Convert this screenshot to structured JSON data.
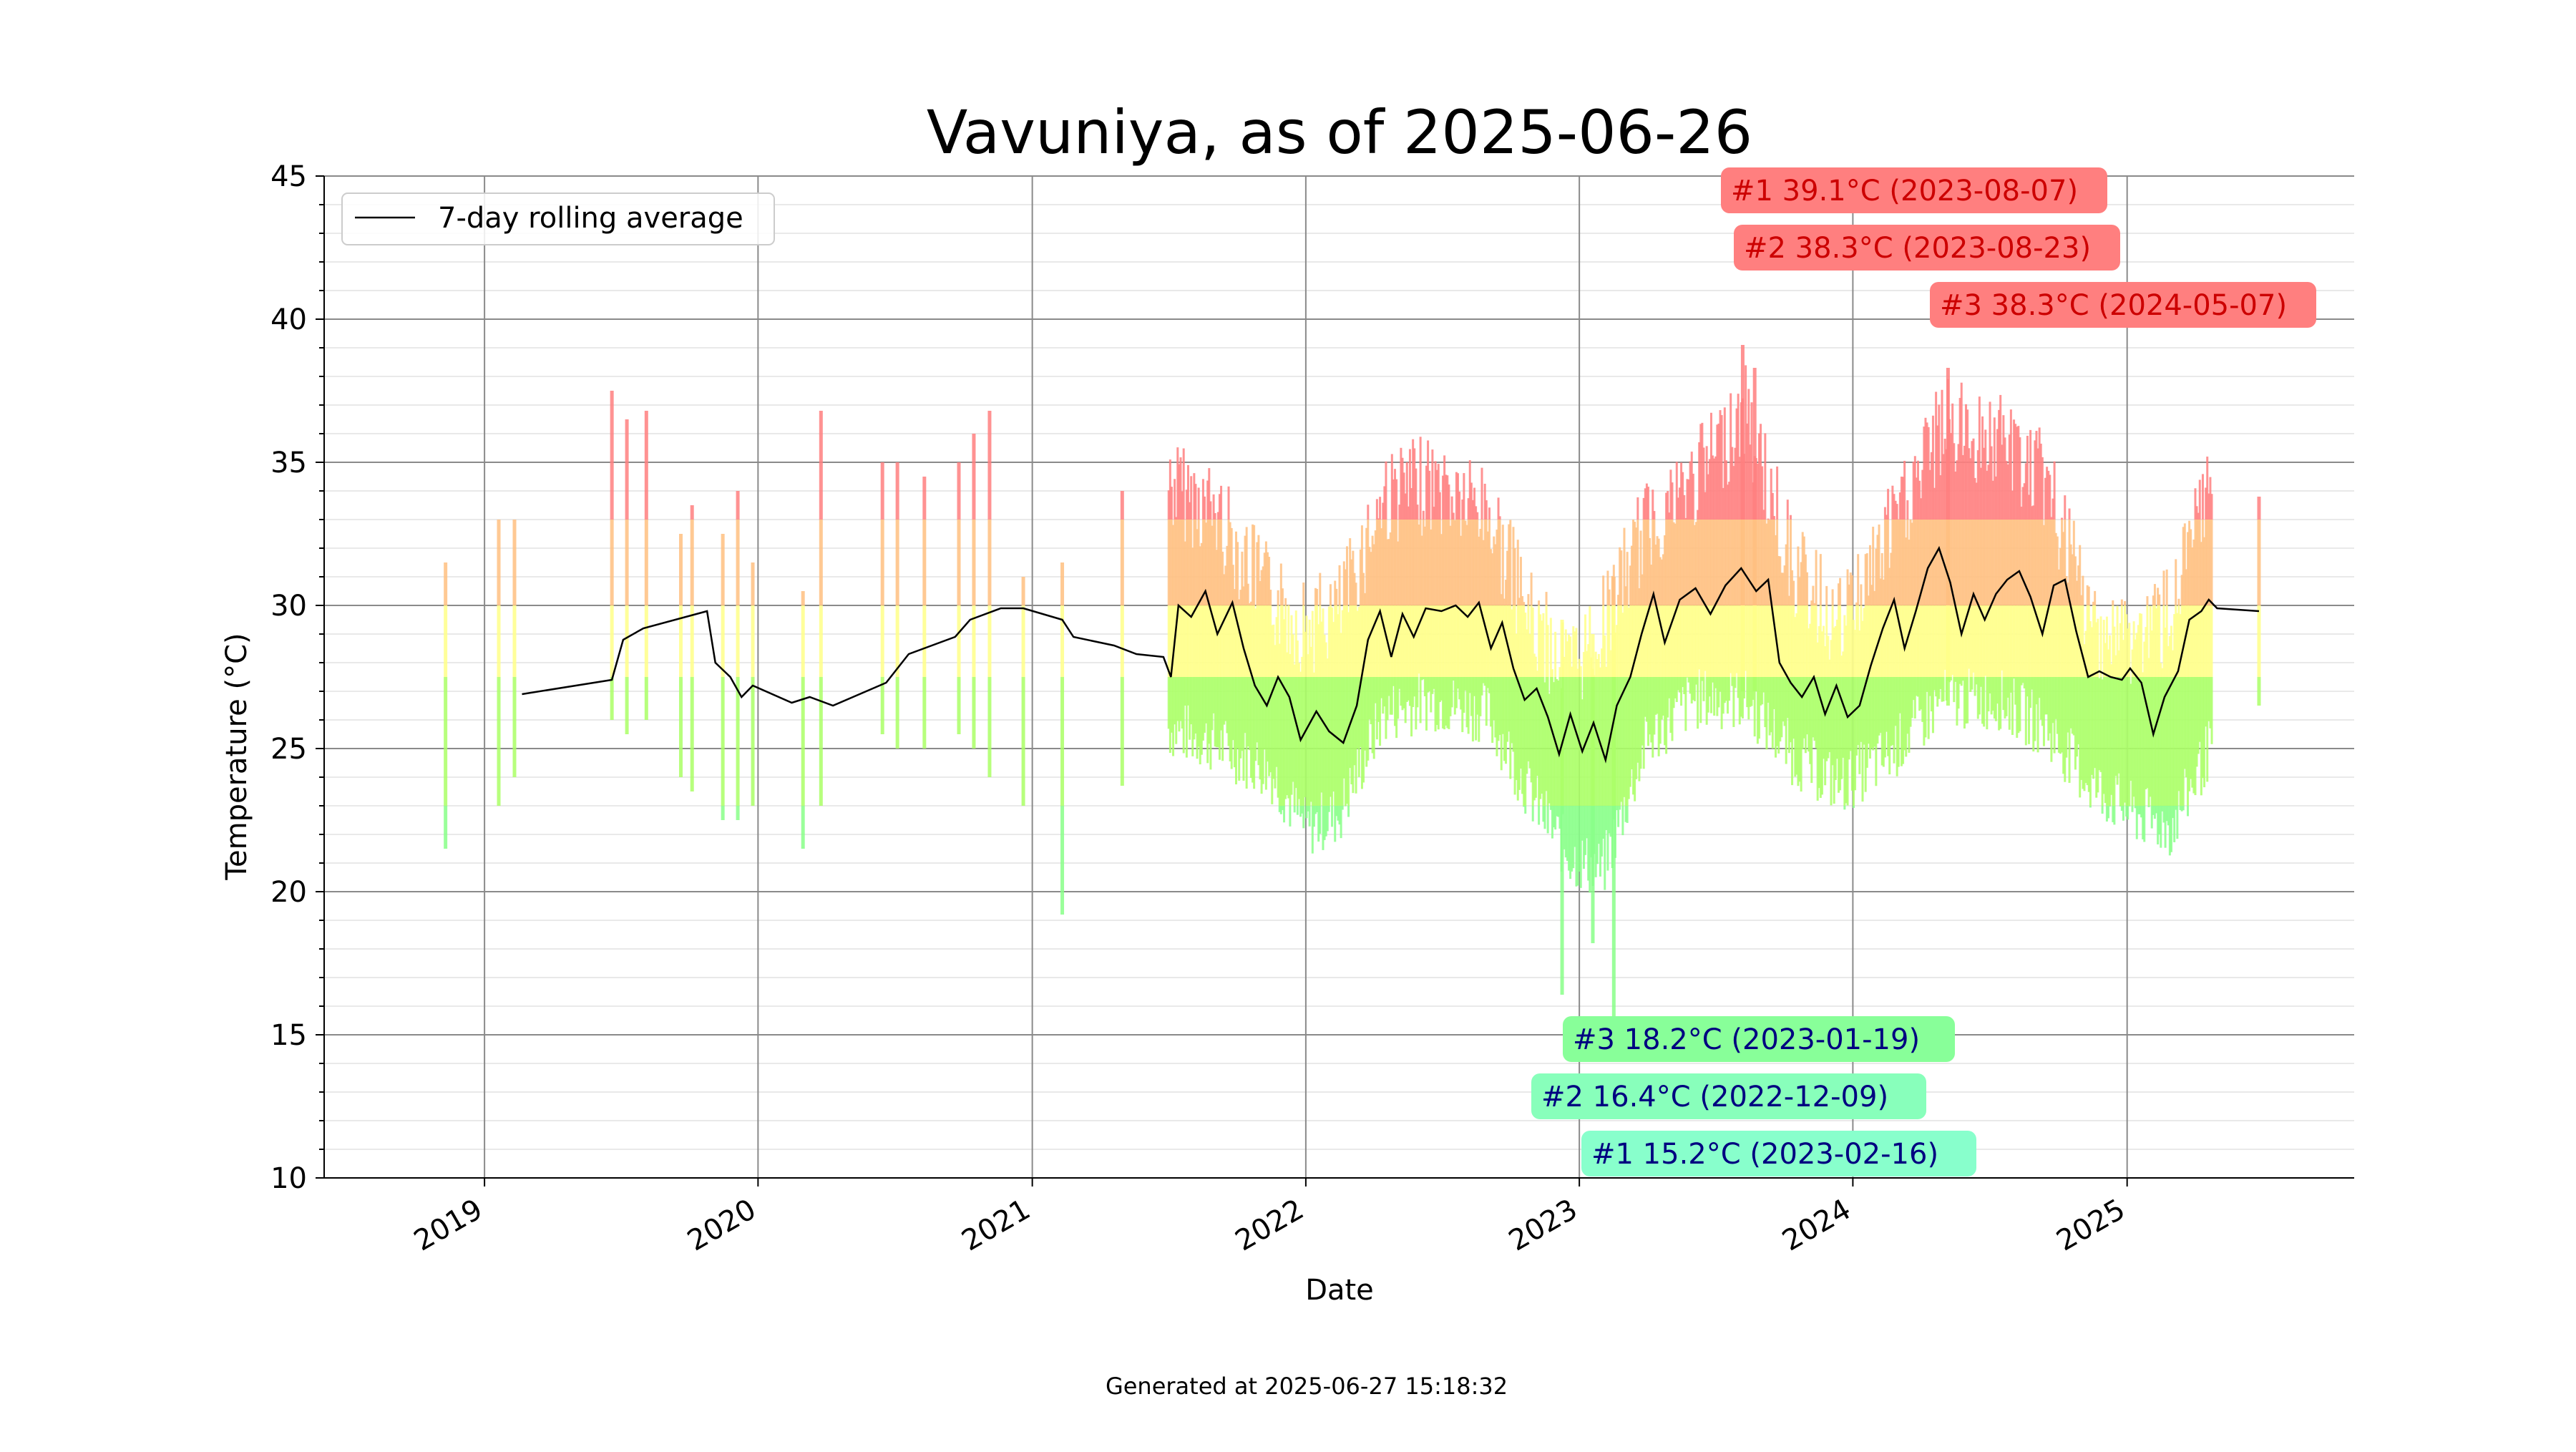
{
  "chart_data": {
    "type": "bar",
    "title": "Vavuniya, as of 2025-06-26",
    "xlabel": "Date",
    "ylabel": "Temperature (°C)",
    "footer": "Generated at 2025-06-27 15:18:32",
    "ylim": [
      10,
      45
    ],
    "xlim": [
      "2018-06-01",
      "2025-10-31"
    ],
    "y_ticks": [
      10,
      15,
      20,
      25,
      30,
      35,
      40,
      45
    ],
    "x_ticks": [
      {
        "date": "2019-01-01",
        "label": "2019"
      },
      {
        "date": "2020-01-01",
        "label": "2020"
      },
      {
        "date": "2021-01-01",
        "label": "2021"
      },
      {
        "date": "2022-01-01",
        "label": "2022"
      },
      {
        "date": "2023-01-01",
        "label": "2023"
      },
      {
        "date": "2024-01-01",
        "label": "2024"
      },
      {
        "date": "2025-01-01",
        "label": "2025"
      }
    ],
    "grid": "on",
    "legend": {
      "placement": "top-left",
      "entries": [
        "7-day rolling average"
      ]
    },
    "colors": {
      "hot": "#ff7f7f",
      "warm": "#ffc080",
      "mild": "#ffff88",
      "cool": "#aaff66",
      "cold": "#88ff88",
      "avg_line": "#000000"
    },
    "daily_ranges": {
      "description_fields": [
        "date",
        "min",
        "max"
      ],
      "segments": [
        {
          "date": "2018-11-10",
          "min": 21.5,
          "max": 31.5
        },
        {
          "date": "2019-01-20",
          "min": 23.0,
          "max": 33.0
        },
        {
          "date": "2019-02-10",
          "min": 24.0,
          "max": 33.0
        },
        {
          "date": "2019-06-20",
          "min": 26.0,
          "max": 37.5
        },
        {
          "date": "2019-07-10",
          "min": 25.5,
          "max": 36.5
        },
        {
          "date": "2019-08-05",
          "min": 26.0,
          "max": 36.8
        },
        {
          "date": "2019-09-20",
          "min": 24.0,
          "max": 32.5
        },
        {
          "date": "2019-10-05",
          "min": 23.5,
          "max": 33.5
        },
        {
          "date": "2019-11-15",
          "min": 22.5,
          "max": 32.5
        },
        {
          "date": "2019-12-05",
          "min": 22.5,
          "max": 34.0
        },
        {
          "date": "2019-12-25",
          "min": 23.0,
          "max": 31.5
        },
        {
          "date": "2020-03-01",
          "min": 21.5,
          "max": 30.5
        },
        {
          "date": "2020-03-25",
          "min": 23.0,
          "max": 36.8
        },
        {
          "date": "2020-06-15",
          "min": 25.5,
          "max": 35.0
        },
        {
          "date": "2020-07-05",
          "min": 25.0,
          "max": 35.0
        },
        {
          "date": "2020-08-10",
          "min": 25.0,
          "max": 34.5
        },
        {
          "date": "2020-09-25",
          "min": 25.5,
          "max": 35.0
        },
        {
          "date": "2020-10-15",
          "min": 25.0,
          "max": 36.0
        },
        {
          "date": "2020-11-05",
          "min": 24.0,
          "max": 36.8
        },
        {
          "date": "2020-12-20",
          "min": 23.0,
          "max": 31.0
        },
        {
          "date": "2021-02-10",
          "min": 19.2,
          "max": 31.5
        },
        {
          "date": "2021-05-01",
          "min": 23.7,
          "max": 34.0
        },
        {
          "date": "2023-08-07",
          "min": 27.0,
          "max": 39.1
        },
        {
          "date": "2023-08-23",
          "min": 27.0,
          "max": 38.3
        },
        {
          "date": "2024-05-07",
          "min": 26.5,
          "max": 38.3
        },
        {
          "date": "2023-01-19",
          "min": 18.2,
          "max": 29.0
        },
        {
          "date": "2022-12-09",
          "min": 16.4,
          "max": 29.5
        },
        {
          "date": "2023-02-16",
          "min": 15.2,
          "max": 31.0
        },
        {
          "date": "2025-06-26",
          "min": 26.5,
          "max": 33.8
        }
      ],
      "dense_periods": [
        {
          "start": "2021-06-20",
          "end": "2025-04-30"
        }
      ]
    },
    "seasonal_envelope": [
      {
        "date": "2021-07-01",
        "min": 25.5,
        "max": 36.0
      },
      {
        "date": "2021-09-01",
        "min": 25.0,
        "max": 35.0
      },
      {
        "date": "2021-11-15",
        "min": 24.0,
        "max": 32.0
      },
      {
        "date": "2022-01-01",
        "min": 22.0,
        "max": 31.0
      },
      {
        "date": "2022-02-15",
        "min": 22.5,
        "max": 31.5
      },
      {
        "date": "2022-04-15",
        "min": 26.0,
        "max": 35.5
      },
      {
        "date": "2022-06-15",
        "min": 26.5,
        "max": 36.0
      },
      {
        "date": "2022-09-01",
        "min": 26.0,
        "max": 35.0
      },
      {
        "date": "2022-11-01",
        "min": 23.0,
        "max": 31.0
      },
      {
        "date": "2022-12-20",
        "min": 21.0,
        "max": 29.5
      },
      {
        "date": "2023-02-01",
        "min": 20.5,
        "max": 31.0
      },
      {
        "date": "2023-04-01",
        "min": 25.0,
        "max": 34.5
      },
      {
        "date": "2023-06-01",
        "min": 26.5,
        "max": 36.0
      },
      {
        "date": "2023-08-10",
        "min": 26.5,
        "max": 38.5
      },
      {
        "date": "2023-10-15",
        "min": 24.5,
        "max": 33.0
      },
      {
        "date": "2023-12-15",
        "min": 23.5,
        "max": 31.0
      },
      {
        "date": "2024-02-15",
        "min": 24.5,
        "max": 34.0
      },
      {
        "date": "2024-05-01",
        "min": 26.5,
        "max": 38.0
      },
      {
        "date": "2024-07-15",
        "min": 26.5,
        "max": 37.5
      },
      {
        "date": "2024-09-15",
        "min": 25.5,
        "max": 36.0
      },
      {
        "date": "2024-11-15",
        "min": 23.5,
        "max": 31.0
      },
      {
        "date": "2025-01-10",
        "min": 22.5,
        "max": 30.5
      },
      {
        "date": "2025-03-01",
        "min": 22.0,
        "max": 31.5
      },
      {
        "date": "2025-04-25",
        "min": 25.0,
        "max": 36.0
      }
    ],
    "series": [
      {
        "name": "7-day rolling average",
        "points": [
          {
            "x": "2019-02-20",
            "y": 26.9
          },
          {
            "x": "2019-06-20",
            "y": 27.4
          },
          {
            "x": "2019-07-05",
            "y": 28.8
          },
          {
            "x": "2019-08-01",
            "y": 29.2
          },
          {
            "x": "2019-10-25",
            "y": 29.8
          },
          {
            "x": "2019-11-05",
            "y": 28.0
          },
          {
            "x": "2019-11-25",
            "y": 27.5
          },
          {
            "x": "2019-12-10",
            "y": 26.8
          },
          {
            "x": "2019-12-25",
            "y": 27.2
          },
          {
            "x": "2020-02-15",
            "y": 26.6
          },
          {
            "x": "2020-03-10",
            "y": 26.8
          },
          {
            "x": "2020-04-10",
            "y": 26.5
          },
          {
            "x": "2020-06-20",
            "y": 27.3
          },
          {
            "x": "2020-07-20",
            "y": 28.3
          },
          {
            "x": "2020-09-20",
            "y": 28.9
          },
          {
            "x": "2020-10-10",
            "y": 29.5
          },
          {
            "x": "2020-11-20",
            "y": 29.9
          },
          {
            "x": "2020-12-20",
            "y": 29.9
          },
          {
            "x": "2021-02-10",
            "y": 29.5
          },
          {
            "x": "2021-02-25",
            "y": 28.9
          },
          {
            "x": "2021-04-20",
            "y": 28.6
          },
          {
            "x": "2021-05-20",
            "y": 28.3
          },
          {
            "x": "2021-06-25",
            "y": 28.2
          },
          {
            "x": "2021-07-05",
            "y": 27.5
          },
          {
            "x": "2021-07-15",
            "y": 30.0
          },
          {
            "x": "2021-08-01",
            "y": 29.6
          },
          {
            "x": "2021-08-20",
            "y": 30.5
          },
          {
            "x": "2021-09-05",
            "y": 29.0
          },
          {
            "x": "2021-09-25",
            "y": 30.1
          },
          {
            "x": "2021-10-10",
            "y": 28.5
          },
          {
            "x": "2021-10-25",
            "y": 27.2
          },
          {
            "x": "2021-11-10",
            "y": 26.5
          },
          {
            "x": "2021-11-25",
            "y": 27.5
          },
          {
            "x": "2021-12-10",
            "y": 26.8
          },
          {
            "x": "2021-12-25",
            "y": 25.3
          },
          {
            "x": "2022-01-15",
            "y": 26.3
          },
          {
            "x": "2022-02-01",
            "y": 25.6
          },
          {
            "x": "2022-02-20",
            "y": 25.2
          },
          {
            "x": "2022-03-10",
            "y": 26.5
          },
          {
            "x": "2022-03-25",
            "y": 28.8
          },
          {
            "x": "2022-04-10",
            "y": 29.8
          },
          {
            "x": "2022-04-25",
            "y": 28.2
          },
          {
            "x": "2022-05-10",
            "y": 29.7
          },
          {
            "x": "2022-05-25",
            "y": 28.9
          },
          {
            "x": "2022-06-10",
            "y": 29.9
          },
          {
            "x": "2022-07-01",
            "y": 29.8
          },
          {
            "x": "2022-07-20",
            "y": 30.0
          },
          {
            "x": "2022-08-05",
            "y": 29.6
          },
          {
            "x": "2022-08-20",
            "y": 30.1
          },
          {
            "x": "2022-09-05",
            "y": 28.5
          },
          {
            "x": "2022-09-20",
            "y": 29.4
          },
          {
            "x": "2022-10-05",
            "y": 27.8
          },
          {
            "x": "2022-10-20",
            "y": 26.7
          },
          {
            "x": "2022-11-05",
            "y": 27.1
          },
          {
            "x": "2022-11-20",
            "y": 26.1
          },
          {
            "x": "2022-12-05",
            "y": 24.8
          },
          {
            "x": "2022-12-20",
            "y": 26.2
          },
          {
            "x": "2023-01-05",
            "y": 24.9
          },
          {
            "x": "2023-01-20",
            "y": 25.9
          },
          {
            "x": "2023-02-05",
            "y": 24.6
          },
          {
            "x": "2023-02-20",
            "y": 26.5
          },
          {
            "x": "2023-03-10",
            "y": 27.5
          },
          {
            "x": "2023-03-25",
            "y": 29.0
          },
          {
            "x": "2023-04-10",
            "y": 30.4
          },
          {
            "x": "2023-04-25",
            "y": 28.7
          },
          {
            "x": "2023-05-15",
            "y": 30.2
          },
          {
            "x": "2023-06-05",
            "y": 30.6
          },
          {
            "x": "2023-06-25",
            "y": 29.7
          },
          {
            "x": "2023-07-15",
            "y": 30.7
          },
          {
            "x": "2023-08-05",
            "y": 31.3
          },
          {
            "x": "2023-08-25",
            "y": 30.5
          },
          {
            "x": "2023-09-10",
            "y": 30.9
          },
          {
            "x": "2023-09-25",
            "y": 28.0
          },
          {
            "x": "2023-10-10",
            "y": 27.3
          },
          {
            "x": "2023-10-25",
            "y": 26.8
          },
          {
            "x": "2023-11-10",
            "y": 27.5
          },
          {
            "x": "2023-11-25",
            "y": 26.2
          },
          {
            "x": "2023-12-10",
            "y": 27.2
          },
          {
            "x": "2023-12-25",
            "y": 26.1
          },
          {
            "x": "2024-01-10",
            "y": 26.5
          },
          {
            "x": "2024-01-25",
            "y": 27.9
          },
          {
            "x": "2024-02-10",
            "y": 29.2
          },
          {
            "x": "2024-02-25",
            "y": 30.2
          },
          {
            "x": "2024-03-10",
            "y": 28.5
          },
          {
            "x": "2024-03-25",
            "y": 29.8
          },
          {
            "x": "2024-04-10",
            "y": 31.3
          },
          {
            "x": "2024-04-25",
            "y": 32.0
          },
          {
            "x": "2024-05-10",
            "y": 30.8
          },
          {
            "x": "2024-05-25",
            "y": 29.0
          },
          {
            "x": "2024-06-10",
            "y": 30.4
          },
          {
            "x": "2024-06-25",
            "y": 29.5
          },
          {
            "x": "2024-07-10",
            "y": 30.4
          },
          {
            "x": "2024-07-25",
            "y": 30.9
          },
          {
            "x": "2024-08-10",
            "y": 31.2
          },
          {
            "x": "2024-08-25",
            "y": 30.3
          },
          {
            "x": "2024-09-10",
            "y": 29.0
          },
          {
            "x": "2024-09-25",
            "y": 30.7
          },
          {
            "x": "2024-10-10",
            "y": 30.9
          },
          {
            "x": "2024-10-25",
            "y": 29.1
          },
          {
            "x": "2024-11-10",
            "y": 27.5
          },
          {
            "x": "2024-11-25",
            "y": 27.7
          },
          {
            "x": "2024-12-10",
            "y": 27.5
          },
          {
            "x": "2024-12-25",
            "y": 27.4
          },
          {
            "x": "2025-01-05",
            "y": 27.8
          },
          {
            "x": "2025-01-20",
            "y": 27.3
          },
          {
            "x": "2025-02-05",
            "y": 25.5
          },
          {
            "x": "2025-02-20",
            "y": 26.8
          },
          {
            "x": "2025-03-10",
            "y": 27.7
          },
          {
            "x": "2025-03-25",
            "y": 29.5
          },
          {
            "x": "2025-04-10",
            "y": 29.8
          },
          {
            "x": "2025-04-20",
            "y": 30.2
          },
          {
            "x": "2025-05-01",
            "y": 29.9
          },
          {
            "x": "2025-06-26",
            "y": 29.8
          }
        ]
      }
    ],
    "annotations": [
      {
        "rank": "#1",
        "label": "#1 39.1°C (2023-08-07)",
        "kind": "max",
        "bg": "#ff7f7f",
        "fg": "#cc0000"
      },
      {
        "rank": "#2",
        "label": "#2 38.3°C (2023-08-23)",
        "kind": "max",
        "bg": "#ff7f7f",
        "fg": "#cc0000"
      },
      {
        "rank": "#3",
        "label": "#3 38.3°C (2024-05-07)",
        "kind": "max",
        "bg": "#ff7f7f",
        "fg": "#cc0000"
      },
      {
        "rank": "#3",
        "label": "#3 18.2°C (2023-01-19)",
        "kind": "min",
        "bg": "#88ff99",
        "fg": "#000080"
      },
      {
        "rank": "#2",
        "label": "#2 16.4°C (2022-12-09)",
        "kind": "min",
        "bg": "#88ffbb",
        "fg": "#000080"
      },
      {
        "rank": "#1",
        "label": "#1 15.2°C (2023-02-16)",
        "kind": "min",
        "bg": "#88ffcc",
        "fg": "#000080"
      }
    ]
  }
}
